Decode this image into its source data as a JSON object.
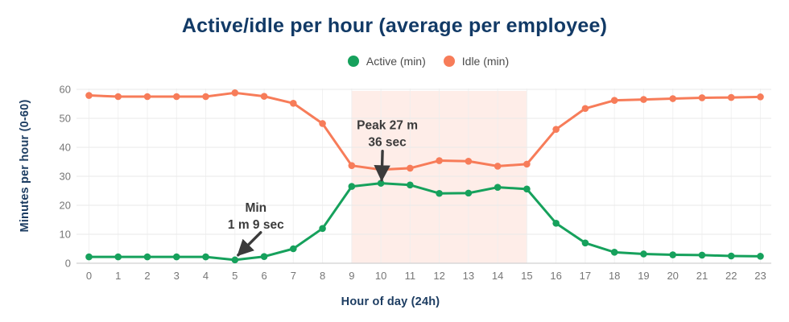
{
  "header": {
    "title": "Active/idle per hour (average per employee)"
  },
  "legend": {
    "items": [
      {
        "label": "Active (min)",
        "color": "#16a15c"
      },
      {
        "label": "Idle (min)",
        "color": "#f77c59"
      }
    ]
  },
  "colors": {
    "title": "#123a66",
    "axis_title": "#1d3d62",
    "tick_label": "#767676",
    "legend_text": "#4b4b4b",
    "annotation": "#3b3b3b",
    "grid_h": "#e9e9e9",
    "grid_v": "#efefef",
    "axis_line": "#d8d8d8",
    "active_series": "#16a15c",
    "idle_series": "#f77c59"
  },
  "chart_data": {
    "type": "line",
    "title": "Active/idle per hour (average per employee)",
    "xlabel": "Hour of day (24h)",
    "ylabel": "Minutes per hour (0-60)",
    "x": [
      0,
      1,
      2,
      3,
      4,
      5,
      6,
      7,
      8,
      9,
      10,
      11,
      12,
      13,
      14,
      15,
      16,
      17,
      18,
      19,
      20,
      21,
      22,
      23
    ],
    "series": [
      {
        "name": "Active (min)",
        "color": "#16a15c",
        "values": [
          2.2,
          2.2,
          2.2,
          2.2,
          2.2,
          1.15,
          2.3,
          5.0,
          12.0,
          26.5,
          27.6,
          27.0,
          24.1,
          24.2,
          26.2,
          25.6,
          13.8,
          7.0,
          3.8,
          3.2,
          2.9,
          2.8,
          2.5,
          2.4
        ]
      },
      {
        "name": "Idle (min)",
        "color": "#f77c59",
        "values": [
          57.9,
          57.5,
          57.5,
          57.5,
          57.5,
          58.8,
          57.6,
          55.2,
          48.2,
          33.7,
          32.3,
          32.8,
          35.4,
          35.2,
          33.5,
          34.2,
          46.2,
          53.4,
          56.2,
          56.5,
          56.8,
          57.1,
          57.2,
          57.4
        ]
      }
    ],
    "ylim": [
      0,
      60
    ],
    "yticks": [
      0,
      10,
      20,
      30,
      40,
      50,
      60
    ],
    "grid": true,
    "legend_position": "top-center",
    "highlight_band": {
      "x_start": 9,
      "x_end": 15,
      "color": "#f77c59",
      "opacity": 0.14
    },
    "annotations": [
      {
        "id": "peak",
        "lines": [
          "Peak 27 m",
          "36 sec"
        ],
        "series_index": 0,
        "hour": 10,
        "value_label": "27 m 36 sec",
        "text_dx": 8,
        "text_dy": -67,
        "line_height": 21,
        "arrow_tail": [
          2,
          -40
        ],
        "arrow_tip": [
          1,
          -4
        ]
      },
      {
        "id": "min",
        "lines": [
          "Min",
          "1 m 9 sec"
        ],
        "series_index": 0,
        "hour": 5,
        "value_label": "1 m 9 sec",
        "text_dx": 26,
        "text_dy": -60,
        "line_height": 21,
        "arrow_tail": [
          32,
          -34
        ],
        "arrow_tip": [
          4,
          -6
        ]
      }
    ]
  }
}
